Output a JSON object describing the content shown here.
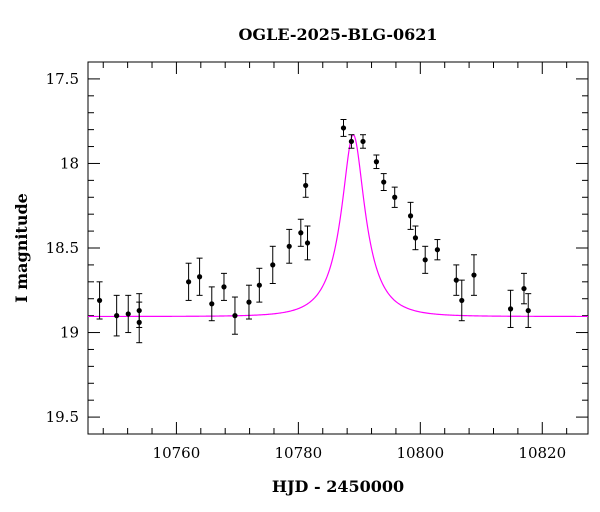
{
  "chart_data": {
    "type": "scatter",
    "title": "OGLE-2025-BLG-0621",
    "xlabel": "HJD - 2450000",
    "ylabel": "I magnitude",
    "xlim": [
      10745.5,
      10827.5
    ],
    "ylim": [
      19.6,
      17.4
    ],
    "y_inverted": true,
    "x_major_ticks": [
      10760,
      10780,
      10800,
      10820
    ],
    "x_tick_labels": [
      "10760",
      "10780",
      "10800",
      "10820"
    ],
    "x_minor_step": 4,
    "y_major_ticks": [
      17.5,
      18,
      18.5,
      19,
      19.5
    ],
    "y_tick_labels": [
      "17.5",
      "18",
      "18.5",
      "19",
      "19.5"
    ],
    "y_minor_step": 0.1,
    "grid": false,
    "colors": {
      "data": "#000000",
      "model": "#ff00ff"
    },
    "series": [
      {
        "type": "errorbar",
        "x": [
          10747.4,
          10750.2,
          10752.1,
          10753.9,
          10753.9,
          10762.0,
          10763.8,
          10765.8,
          10767.8,
          10769.6,
          10771.9,
          10773.6,
          10775.8,
          10778.5,
          10780.4,
          10781.2,
          10781.5,
          10787.4,
          10788.7,
          10790.6,
          10792.8,
          10794.0,
          10795.8,
          10798.4,
          10799.2,
          10800.8,
          10802.8,
          10805.9,
          10806.8,
          10808.8,
          10814.8,
          10817.0,
          10817.7
        ],
        "y": [
          18.81,
          18.9,
          18.89,
          18.87,
          18.94,
          18.7,
          18.67,
          18.83,
          18.73,
          18.9,
          18.82,
          18.72,
          18.6,
          18.49,
          18.41,
          18.13,
          18.47,
          17.79,
          17.87,
          17.87,
          17.99,
          18.11,
          18.2,
          18.31,
          18.44,
          18.57,
          18.51,
          18.69,
          18.81,
          18.66,
          18.86,
          18.74,
          18.87
        ],
        "err": [
          0.11,
          0.12,
          0.11,
          0.1,
          0.12,
          0.11,
          0.11,
          0.1,
          0.08,
          0.11,
          0.1,
          0.1,
          0.11,
          0.1,
          0.08,
          0.07,
          0.1,
          0.05,
          0.04,
          0.04,
          0.04,
          0.05,
          0.06,
          0.08,
          0.07,
          0.08,
          0.06,
          0.09,
          0.12,
          0.12,
          0.11,
          0.09,
          0.1
        ]
      },
      {
        "type": "model_curve",
        "baseline": 18.905,
        "peak": 17.83,
        "t0": 10789.0,
        "te": 5.0,
        "u0": 0.38
      }
    ]
  }
}
